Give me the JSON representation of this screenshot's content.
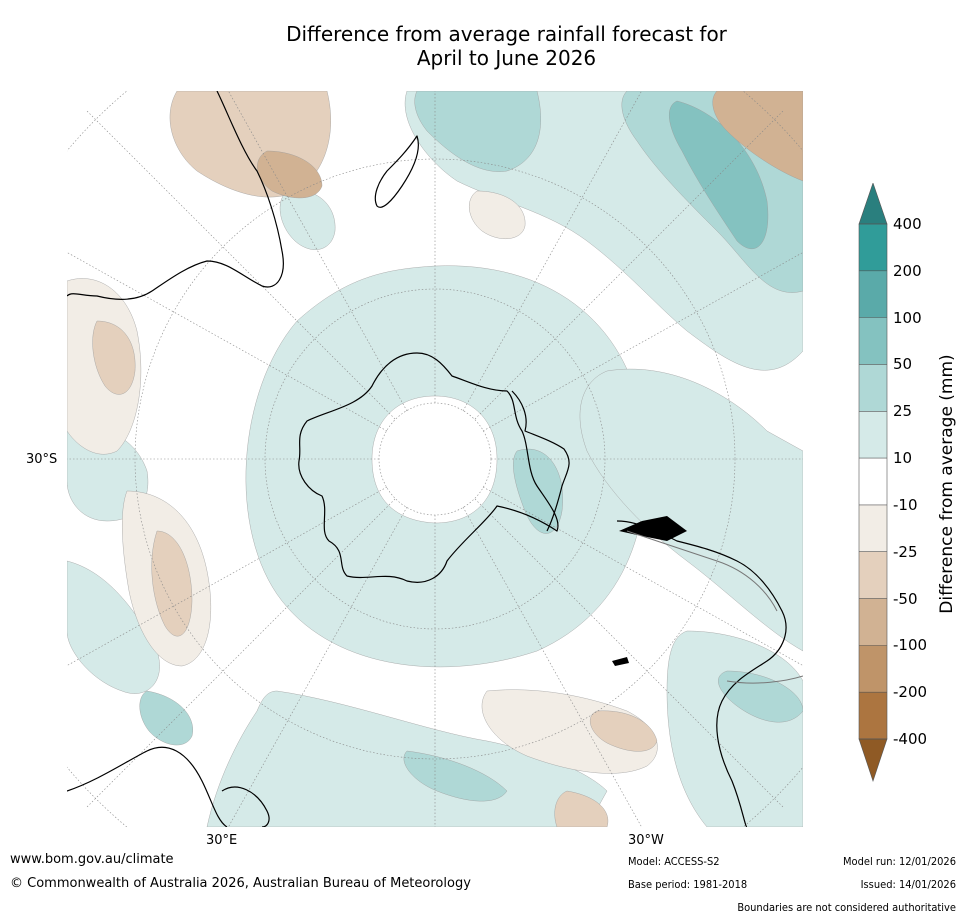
{
  "title": {
    "line1": "Difference from average rainfall forecast for",
    "line2": "April to June 2026"
  },
  "map": {
    "projection": "south-polar-stereographic",
    "labels": {
      "lat_left": "30°S",
      "lon_bottom_left": "30°E",
      "lon_bottom_right": "30°W"
    }
  },
  "legend": {
    "label": "Difference from average (mm)",
    "ticks": [
      "400",
      "200",
      "100",
      "50",
      "25",
      "10",
      "-10",
      "-25",
      "-50",
      "-100",
      "-200",
      "-400"
    ],
    "colors": {
      "gt400": "#2a7f7e",
      "200_400": "#309c99",
      "100_200": "#5aaaa9",
      "50_100": "#84c2c0",
      "25_50": "#afd8d6",
      "10_25": "#d5eae8",
      "neutral": "#ffffff",
      "m10_m25": "#f2ede6",
      "m25_m50": "#e4d0bd",
      "m50_m100": "#d1b293",
      "m100_m200": "#bf9469",
      "m200_m400": "#ac7540",
      "lt_m400": "#8f5a25"
    }
  },
  "footer": {
    "url": "www.bom.gov.au/climate",
    "copyright": "© Commonwealth of Australia 2026, Australian Bureau of Meteorology",
    "model": "Model: ACCESS-S2",
    "base_period": "Base period: 1981-2018",
    "model_run": "Model run: 12/01/2026",
    "issued": "Issued: 14/01/2026",
    "disclaimer": "Boundaries are not considered authoritative"
  }
}
